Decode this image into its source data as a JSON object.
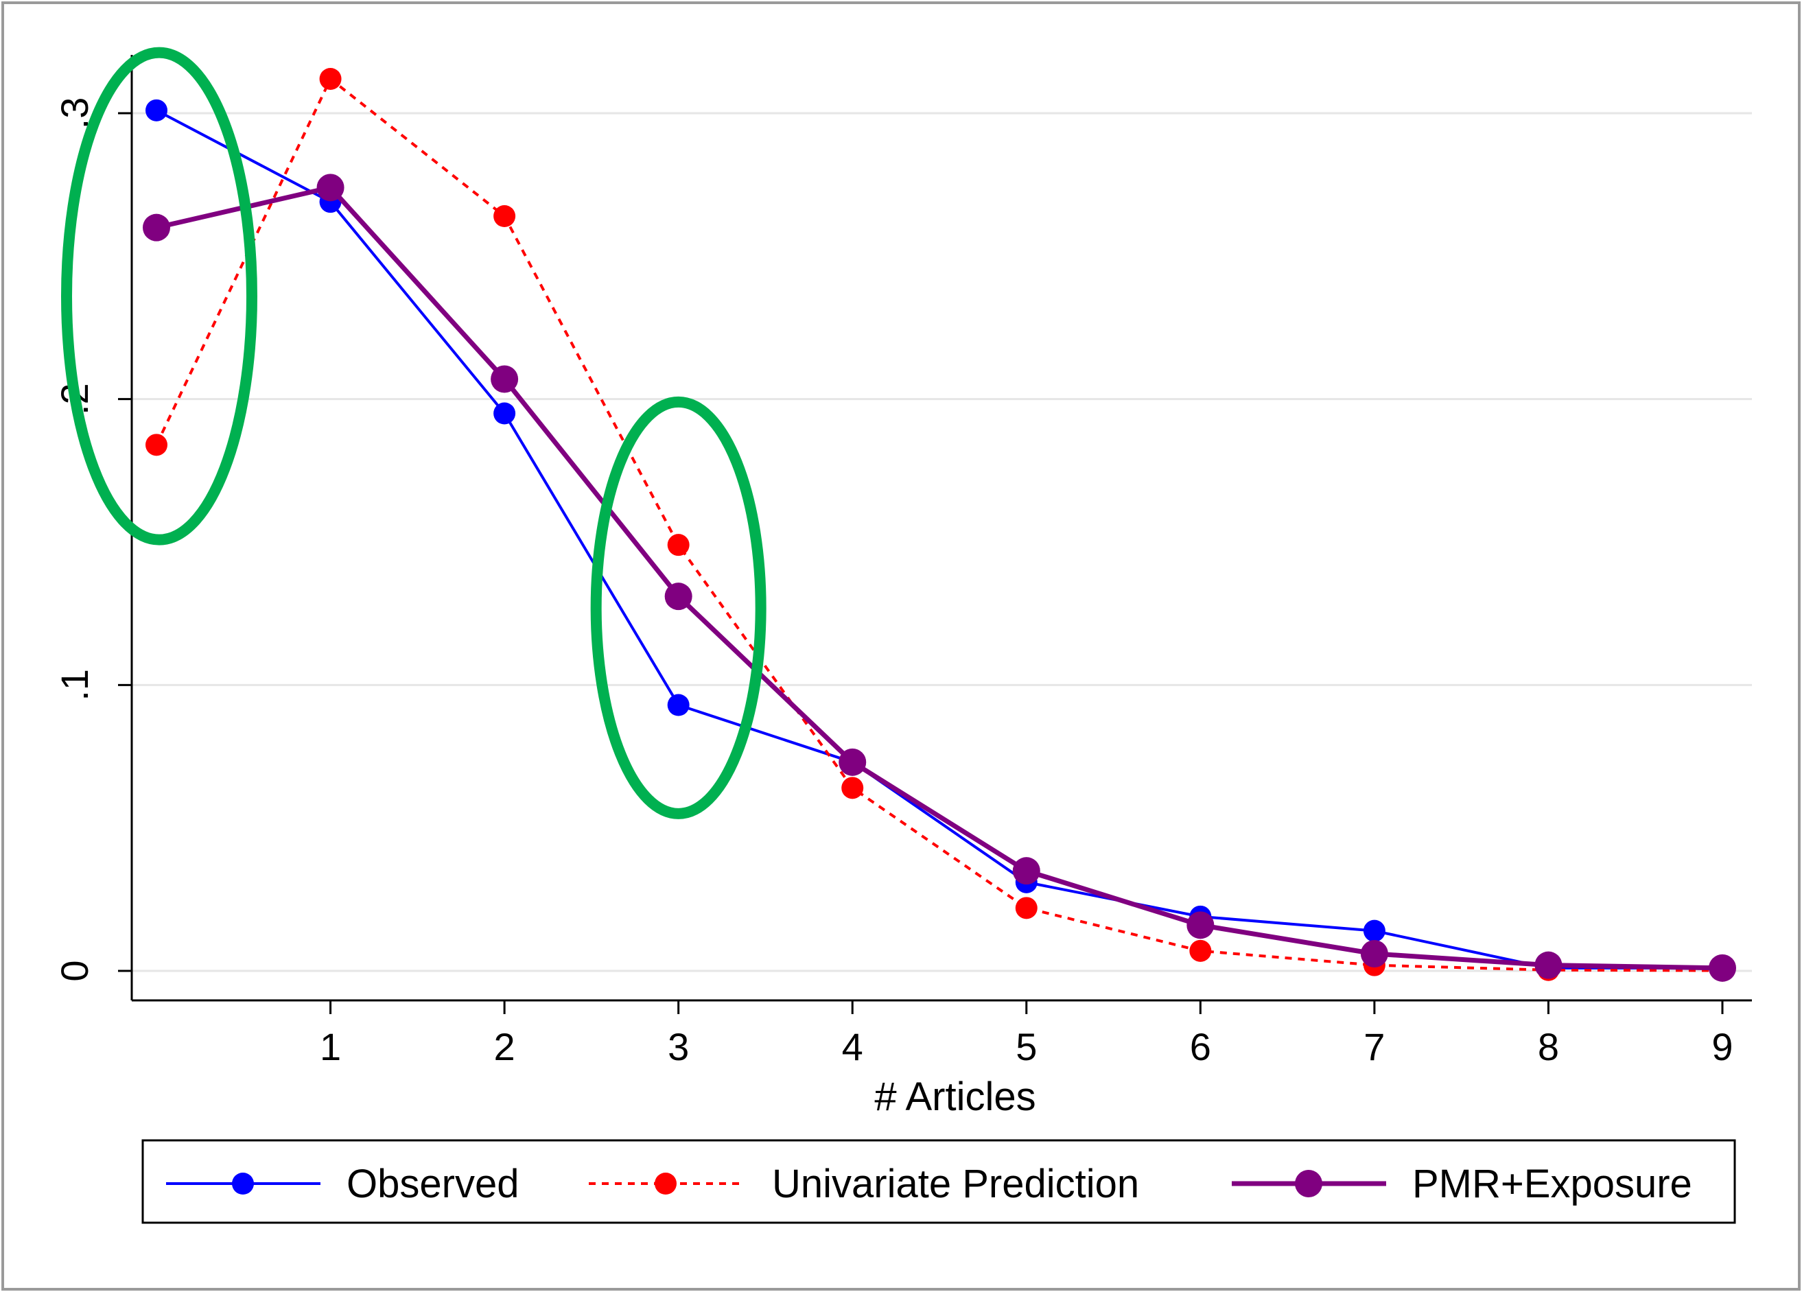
{
  "chart_data": {
    "type": "line",
    "title": "",
    "xlabel": "# Articles",
    "ylabel": "",
    "x": [
      0,
      1,
      2,
      3,
      4,
      5,
      6,
      7,
      8,
      9
    ],
    "xticks": [
      "1",
      "2",
      "3",
      "4",
      "5",
      "6",
      "7",
      "8",
      "9"
    ],
    "yticks": [
      "0",
      ".1",
      ".2",
      ".3"
    ],
    "ylim": [
      0,
      0.3
    ],
    "xlim": [
      0,
      9
    ],
    "grid": true,
    "legend_position": "bottom",
    "series": [
      {
        "name": "Observed",
        "color": "#0000ff",
        "line_style": "solid",
        "marker": "circle",
        "values": [
          0.301,
          0.269,
          0.195,
          0.093,
          0.073,
          0.031,
          0.019,
          0.014,
          0.001,
          0.001
        ]
      },
      {
        "name": "Univariate Prediction",
        "color": "#ff0000",
        "line_style": "dotted",
        "marker": "circle",
        "values": [
          0.184,
          0.312,
          0.264,
          0.149,
          0.064,
          0.022,
          0.007,
          0.002,
          0.0003,
          0.0001
        ]
      },
      {
        "name": "PMR+Exposure",
        "color": "#800080",
        "line_style": "solid",
        "marker": "circle-large",
        "values": [
          0.26,
          0.274,
          0.207,
          0.131,
          0.073,
          0.035,
          0.016,
          0.006,
          0.002,
          0.001
        ]
      }
    ],
    "annotations": [
      {
        "shape": "ellipse",
        "color": "#00b050",
        "around_x": 0
      },
      {
        "shape": "ellipse",
        "color": "#00b050",
        "around_x": 3
      }
    ]
  }
}
